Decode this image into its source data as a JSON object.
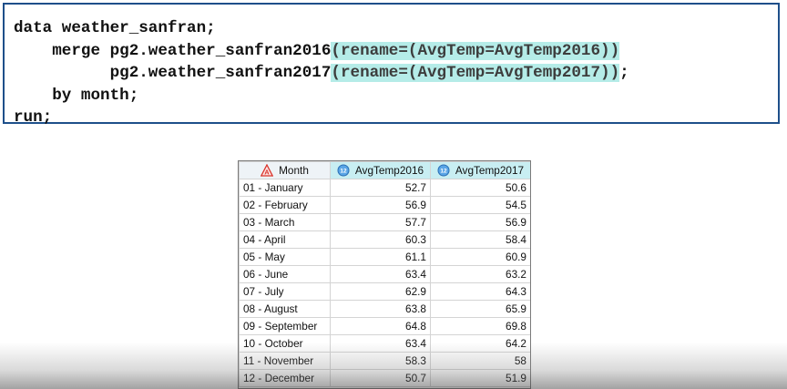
{
  "code_lines": [
    {
      "pre": "data weather_sanfran;",
      "hl": "",
      "post": ""
    },
    {
      "pre": "    merge pg2.weather_sanfran2016",
      "hl": "(rename=(AvgTemp=AvgTemp2016))",
      "post": ""
    },
    {
      "pre": "          pg2.weather_sanfran2017",
      "hl": "(rename=(AvgTemp=AvgTemp2017))",
      "post": ";"
    },
    {
      "pre": "    by month;",
      "hl": "",
      "post": ""
    },
    {
      "pre": "run;",
      "hl": "",
      "post": ""
    }
  ],
  "colors": {
    "border": "#1e4f8a",
    "highlight": "#b5ece8",
    "num_header": "#c8eef2"
  },
  "table": {
    "headers": [
      {
        "label": "Month",
        "icon": "character-column-icon"
      },
      {
        "label": "AvgTemp2016",
        "icon": "numeric-column-icon"
      },
      {
        "label": "AvgTemp2017",
        "icon": "numeric-column-icon"
      }
    ],
    "rows": [
      [
        "01 - January",
        "52.7",
        "50.6"
      ],
      [
        "02 - February",
        "56.9",
        "54.5"
      ],
      [
        "03 - March",
        "57.7",
        "56.9"
      ],
      [
        "04 - April",
        "60.3",
        "58.4"
      ],
      [
        "05 - May",
        "61.1",
        "60.9"
      ],
      [
        "06 - June",
        "63.4",
        "63.2"
      ],
      [
        "07 - July",
        "62.9",
        "64.3"
      ],
      [
        "08 - August",
        "63.8",
        "65.9"
      ],
      [
        "09 - September",
        "64.8",
        "69.8"
      ],
      [
        "10 - October",
        "63.4",
        "64.2"
      ],
      [
        "11 - November",
        "58.3",
        "58"
      ],
      [
        "12 - December",
        "50.7",
        "51.9"
      ]
    ]
  }
}
